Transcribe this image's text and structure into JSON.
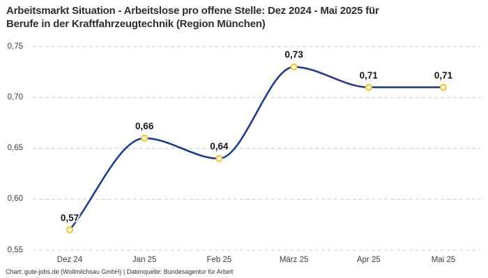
{
  "header": {
    "title_line1": "Arbeitsmarkt Situation - Arbeitslose pro offene Stelle: Dez 2024 - Mai 2025 für",
    "title_line2": "Berufe in der Kraftfahrzeugtechnik (Region München)"
  },
  "footer": {
    "credit": "Chart: gute-jobs.de (Wollmilchsau GmbH) | Datenquelle: Bundesagentur für Arbeit"
  },
  "chart_data": {
    "type": "line",
    "title": "Arbeitsmarkt Situation - Arbeitslose pro offene Stelle: Dez 2024 - Mai 2025 für Berufe in der Kraftfahrzeugtechnik (Region München)",
    "categories": [
      "Dez 24",
      "Jan 25",
      "Feb 25",
      "März 25",
      "Apr 25",
      "Mai 25"
    ],
    "values": [
      0.57,
      0.66,
      0.64,
      0.73,
      0.71,
      0.71
    ],
    "value_labels": [
      "0,57",
      "0,66",
      "0,64",
      "0,73",
      "0,71",
      "0,71"
    ],
    "y_ticks": {
      "values": [
        0.75,
        0.7,
        0.65,
        0.6,
        0.55
      ],
      "labels": [
        "0,75",
        "0,70",
        "0,65",
        "0,60",
        "0,55"
      ]
    },
    "ylim": [
      0.55,
      0.75
    ],
    "xlabel": "",
    "ylabel": "",
    "grid": "horizontal-dashed",
    "legend": "none",
    "curve": "monotone-smooth",
    "line_color": "#1e3a99",
    "marker_color": "#fcc32c",
    "grid_color": "#c8c8c8"
  }
}
